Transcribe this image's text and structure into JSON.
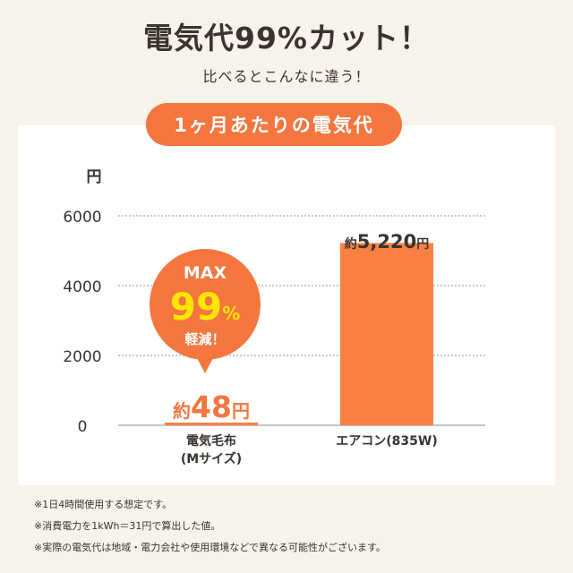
{
  "header": {
    "title": "電気代99%カット！",
    "subtitle": "比べるとこんなに違う！"
  },
  "badge": {
    "label": "1ヶ月あたりの電気代"
  },
  "colors": {
    "accent": "#f4763f",
    "bar": "#f98042",
    "background": "#f8f3ea",
    "panel": "#ffffff",
    "text": "#3a3431"
  },
  "callout": {
    "line1": "MAX",
    "line2_num": "99",
    "line2_unit": "%",
    "line3": "軽減！"
  },
  "chart_data": {
    "type": "bar",
    "unit_label": "円",
    "categories": [
      "電気毛布\n(Mサイズ)",
      "エアコン(835W)"
    ],
    "category_lines": [
      [
        "電気毛布",
        "(Mサイズ)"
      ],
      [
        "エアコン(835W)"
      ]
    ],
    "values": [
      48,
      5220
    ],
    "value_labels": [
      {
        "prefix": "約",
        "number": "48",
        "suffix": "円"
      },
      {
        "prefix": "約",
        "number": "5,220",
        "suffix": "円"
      }
    ],
    "yticks": [
      0,
      2000,
      4000,
      6000
    ],
    "ytick_labels": [
      "0",
      "2000",
      "4000",
      "6000"
    ],
    "ylim": [
      0,
      6000
    ],
    "grid": true
  },
  "footnotes": [
    "※1日4時間使用する想定です。",
    "※消費電力を1kWh＝31円で算出した値。",
    "※実際の電気代は地域・電力会社や使用環境などで異なる可能性がございます。"
  ]
}
